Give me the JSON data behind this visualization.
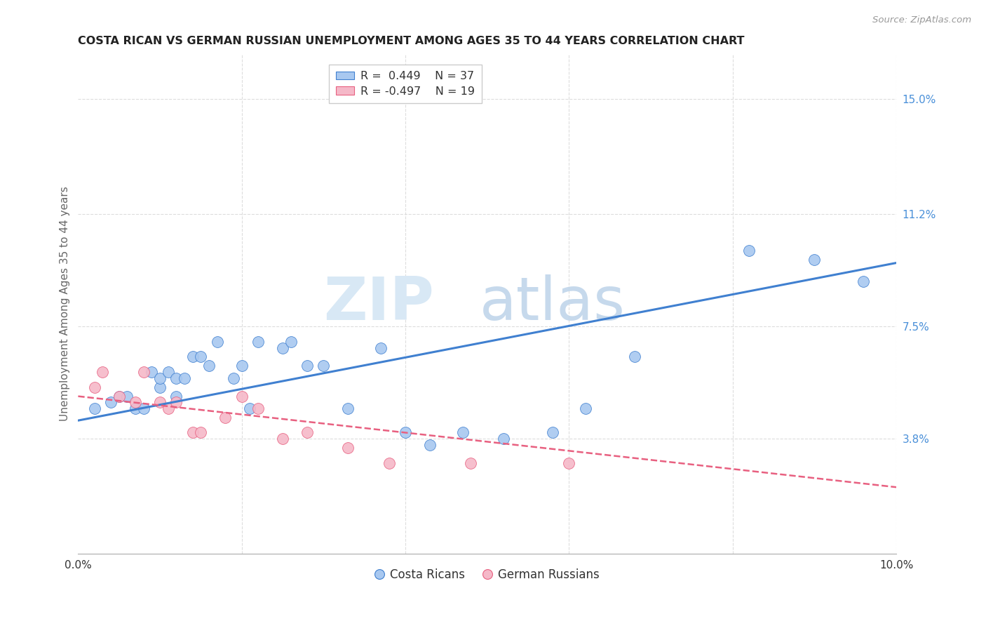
{
  "title": "COSTA RICAN VS GERMAN RUSSIAN UNEMPLOYMENT AMONG AGES 35 TO 44 YEARS CORRELATION CHART",
  "source": "Source: ZipAtlas.com",
  "ylabel": "Unemployment Among Ages 35 to 44 years",
  "xlim": [
    0.0,
    0.1
  ],
  "ylim": [
    0.0,
    0.165
  ],
  "yticks": [
    0.0,
    0.038,
    0.075,
    0.112,
    0.15
  ],
  "ytick_labels": [
    "",
    "3.8%",
    "7.5%",
    "11.2%",
    "15.0%"
  ],
  "xticks": [
    0.0,
    0.02,
    0.04,
    0.06,
    0.08,
    0.1
  ],
  "xtick_labels": [
    "0.0%",
    "",
    "",
    "",
    "",
    "10.0%"
  ],
  "blue_color": "#A8C8F0",
  "pink_color": "#F5B8C8",
  "trend_blue": "#4080D0",
  "trend_pink": "#E86080",
  "watermark_zip": "ZIP",
  "watermark_atlas": "atlas",
  "legend_label1": "R =  0.449    N = 37",
  "legend_label2": "R = -0.497    N = 19",
  "costa_ricans_x": [
    0.002,
    0.004,
    0.005,
    0.006,
    0.007,
    0.008,
    0.009,
    0.01,
    0.01,
    0.011,
    0.012,
    0.012,
    0.013,
    0.014,
    0.015,
    0.016,
    0.017,
    0.019,
    0.02,
    0.021,
    0.022,
    0.025,
    0.026,
    0.028,
    0.03,
    0.033,
    0.037,
    0.04,
    0.043,
    0.047,
    0.052,
    0.058,
    0.062,
    0.068,
    0.082,
    0.09,
    0.096
  ],
  "costa_ricans_y": [
    0.048,
    0.05,
    0.052,
    0.052,
    0.048,
    0.048,
    0.06,
    0.055,
    0.058,
    0.06,
    0.052,
    0.058,
    0.058,
    0.065,
    0.065,
    0.062,
    0.07,
    0.058,
    0.062,
    0.048,
    0.07,
    0.068,
    0.07,
    0.062,
    0.062,
    0.048,
    0.068,
    0.04,
    0.036,
    0.04,
    0.038,
    0.04,
    0.048,
    0.065,
    0.1,
    0.097,
    0.09
  ],
  "german_russians_x": [
    0.002,
    0.003,
    0.005,
    0.007,
    0.008,
    0.01,
    0.011,
    0.012,
    0.014,
    0.015,
    0.018,
    0.02,
    0.022,
    0.025,
    0.028,
    0.033,
    0.038,
    0.048,
    0.06
  ],
  "german_russians_y": [
    0.055,
    0.06,
    0.052,
    0.05,
    0.06,
    0.05,
    0.048,
    0.05,
    0.04,
    0.04,
    0.045,
    0.052,
    0.048,
    0.038,
    0.04,
    0.035,
    0.03,
    0.03,
    0.03
  ],
  "background_color": "#FFFFFF",
  "grid_color": "#DDDDDD"
}
